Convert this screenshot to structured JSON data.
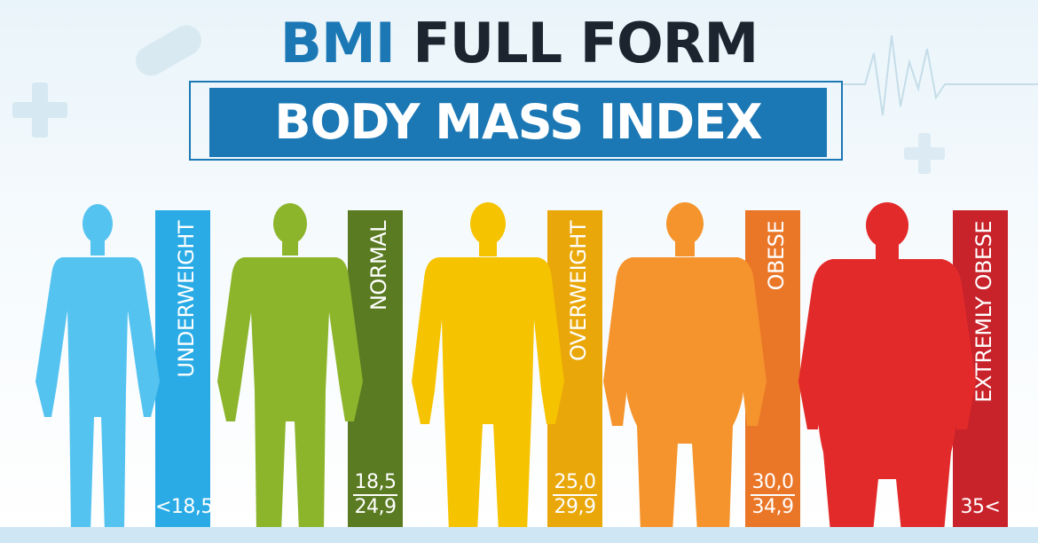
{
  "title": {
    "line1_accent": "BMI",
    "line1_rest": "FULL FORM",
    "line2": "BODY MASS INDEX"
  },
  "colors": {
    "brand_blue": "#1b78b4",
    "title_dark": "#1c2430"
  },
  "categories": [
    {
      "label": "UNDERWEIGHT",
      "range_top": "<18,5",
      "range_bottom": "",
      "figure_color": "#55c3f0",
      "band_color": "#2aabe6"
    },
    {
      "label": "NORMAL",
      "range_top": "18,5",
      "range_bottom": "24,9",
      "figure_color": "#8db52c",
      "band_color": "#5a7b22"
    },
    {
      "label": "OVERWEIGHT",
      "range_top": "25,0",
      "range_bottom": "29,9",
      "figure_color": "#f6c300",
      "band_color": "#e9a70a"
    },
    {
      "label": "OBESE",
      "range_top": "30,0",
      "range_bottom": "34,9",
      "figure_color": "#f5942c",
      "band_color": "#ea7628"
    },
    {
      "label": "EXTREMLY OBESE",
      "range_top": "35<",
      "range_bottom": "",
      "figure_color": "#e32a2a",
      "band_color": "#c8232b"
    }
  ],
  "icons": [
    "plus-icon",
    "pill-icon",
    "heartbeat-line-icon"
  ]
}
